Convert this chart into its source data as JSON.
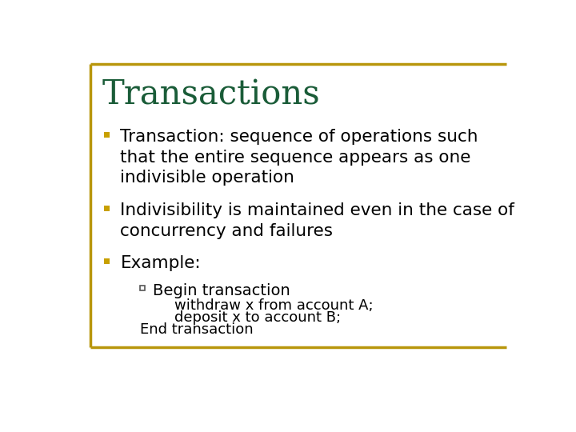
{
  "title": "Transactions",
  "title_color": "#1a5c38",
  "background_color": "#ffffff",
  "border_color": "#b8960c",
  "bullet_color": "#c8a000",
  "text_color": "#000000",
  "bullet_points": [
    "Transaction: sequence of operations such\nthat the entire sequence appears as one\nindivisible operation",
    "Indivisibility is maintained even in the case of\nconcurrency and failures",
    "Example:"
  ],
  "sub_bullet": "Begin transaction",
  "sub_sub_lines": [
    "withdraw x from account A;",
    "deposit x to account B;"
  ],
  "end_line": "End transaction",
  "title_fontsize": 30,
  "bullet_fontsize": 15.5,
  "sub_fontsize": 14,
  "sub_sub_fontsize": 13
}
